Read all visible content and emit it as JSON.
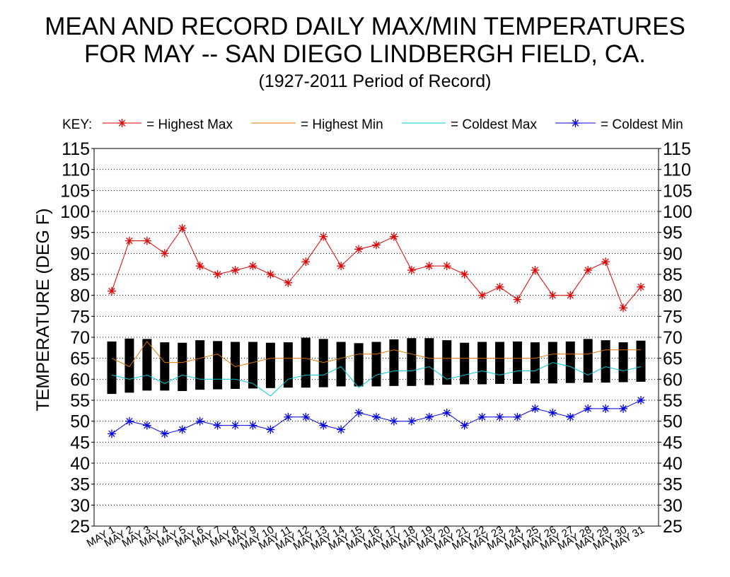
{
  "title_line1": "MEAN AND RECORD DAILY MAX/MIN TEMPERATURES",
  "title_line2": "FOR MAY -- SAN DIEGO LINDBERGH FIELD, CA.",
  "subtitle": "(1927-2011 Period of Record)",
  "key": {
    "label": "KEY:",
    "items": [
      {
        "label": "= Highest Max",
        "color": "#dd0000",
        "marker": "asterisk"
      },
      {
        "label": "= Highest Min",
        "color": "#dd7700",
        "marker": "none"
      },
      {
        "label": "= Coldest Max",
        "color": "#00c8d8",
        "marker": "none"
      },
      {
        "label": "= Coldest Min",
        "color": "#0000dd",
        "marker": "asterisk"
      }
    ]
  },
  "chart_data": {
    "type": "line",
    "title": "MEAN AND RECORD DAILY MAX/MIN TEMPERATURES FOR MAY -- SAN DIEGO LINDBERGH FIELD, CA.",
    "subtitle": "(1927-2011 Period of Record)",
    "ylabel": "TEMPERATURE (DEG F)",
    "xlabel": "",
    "ylim": [
      25,
      115
    ],
    "yticks": [
      25,
      30,
      35,
      40,
      45,
      50,
      55,
      60,
      65,
      70,
      75,
      80,
      85,
      90,
      95,
      100,
      105,
      110,
      115
    ],
    "grid": "horizontal dotted",
    "legend_position": "top",
    "categories": [
      "MAY 1",
      "MAY 2",
      "MAY 3",
      "MAY 4",
      "MAY 5",
      "MAY 6",
      "MAY 7",
      "MAY 8",
      "MAY 9",
      "MAY 10",
      "MAY 11",
      "MAY 12",
      "MAY 13",
      "MAY 14",
      "MAY 15",
      "MAY 16",
      "MAY 17",
      "MAY 18",
      "MAY 19",
      "MAY 20",
      "MAY 21",
      "MAY 22",
      "MAY 23",
      "MAY 24",
      "MAY 25",
      "MAY 26",
      "MAY 27",
      "MAY 28",
      "MAY 29",
      "MAY 30",
      "MAY 31"
    ],
    "series": [
      {
        "name": "Highest Max",
        "color": "#dd0000",
        "values": [
          81,
          93,
          93,
          90,
          96,
          87,
          85,
          86,
          87,
          85,
          83,
          88,
          94,
          87,
          91,
          92,
          94,
          86,
          87,
          87,
          85,
          80,
          82,
          79,
          86,
          80,
          80,
          86,
          88,
          77,
          82
        ]
      },
      {
        "name": "Highest Min",
        "color": "#dd7700",
        "values": [
          65,
          63,
          69,
          64,
          64,
          65,
          66,
          63,
          64,
          65,
          65,
          65,
          64,
          65,
          66,
          66,
          67,
          66,
          65,
          65,
          65,
          65,
          65,
          65,
          65,
          66,
          66,
          66,
          67,
          67,
          67
        ]
      },
      {
        "name": "Coldest Max",
        "color": "#00c8d8",
        "values": [
          61,
          60,
          61,
          59,
          61,
          60,
          60,
          60,
          59,
          56,
          60,
          61,
          61,
          63,
          58,
          61,
          62,
          62,
          63,
          60,
          61,
          62,
          61,
          62,
          62,
          64,
          63,
          61,
          63,
          62,
          63
        ]
      },
      {
        "name": "Coldest Min",
        "color": "#0000dd",
        "values": [
          47,
          50,
          49,
          47,
          48,
          50,
          49,
          49,
          49,
          48,
          51,
          51,
          49,
          48,
          52,
          51,
          50,
          50,
          51,
          52,
          49,
          51,
          51,
          51,
          53,
          52,
          51,
          53,
          53,
          53,
          55
        ]
      }
    ],
    "mean_range_bars": {
      "color": "#000000",
      "low": [
        56.5,
        56.8,
        57.3,
        57.3,
        57.2,
        57.5,
        57.6,
        57.7,
        57.8,
        57.9,
        58.0,
        58.0,
        58.1,
        58.3,
        58.3,
        58.3,
        58.4,
        58.4,
        58.6,
        58.7,
        58.8,
        58.8,
        58.9,
        58.9,
        59.0,
        59.0,
        59.1,
        59.2,
        59.2,
        59.3,
        59.4
      ],
      "high": [
        69.0,
        69.7,
        69.6,
        68.8,
        68.7,
        69.3,
        69.1,
        68.9,
        68.9,
        68.7,
        68.8,
        69.9,
        69.6,
        68.9,
        68.6,
        68.9,
        69.5,
        69.8,
        69.8,
        69.3,
        68.7,
        68.9,
        68.9,
        69.0,
        68.8,
        68.9,
        69.0,
        69.6,
        69.3,
        68.8,
        69.2
      ]
    }
  }
}
